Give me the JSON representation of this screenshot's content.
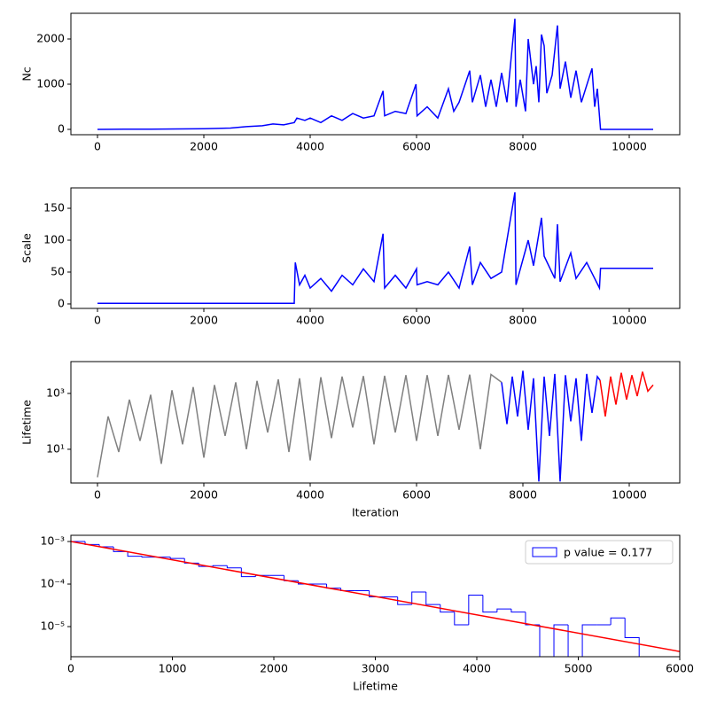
{
  "chart_data": [
    {
      "type": "line",
      "ylabel": "Nc",
      "xlim": [
        -500,
        10950
      ],
      "xticks": [
        0,
        2000,
        4000,
        6000,
        8000,
        10000
      ],
      "ylim": [
        -118,
        2569
      ],
      "yticks": [
        0,
        1000,
        2000
      ],
      "series": [
        {
          "color": "blue",
          "x": [
            0,
            500,
            1000,
            1500,
            2000,
            2500,
            2800,
            3100,
            3300,
            3500,
            3700,
            3750,
            3900,
            4000,
            4200,
            4400,
            4600,
            4800,
            5000,
            5200,
            5370,
            5400,
            5600,
            5800,
            5990,
            6010,
            6200,
            6400,
            6600,
            6700,
            6800,
            7000,
            7050,
            7200,
            7300,
            7400,
            7500,
            7600,
            7700,
            7850,
            7870,
            7950,
            8050,
            8100,
            8200,
            8250,
            8300,
            8350,
            8400,
            8450,
            8550,
            8650,
            8700,
            8800,
            8900,
            9000,
            9100,
            9300,
            9350,
            9400,
            9440,
            9460,
            10450
          ],
          "values": [
            0,
            5,
            5,
            10,
            15,
            30,
            60,
            80,
            120,
            100,
            150,
            250,
            200,
            250,
            150,
            300,
            200,
            350,
            250,
            300,
            850,
            300,
            400,
            350,
            1000,
            300,
            500,
            250,
            900,
            400,
            600,
            1300,
            600,
            1200,
            500,
            1100,
            500,
            1250,
            600,
            2450,
            500,
            1100,
            400,
            2000,
            1000,
            1400,
            600,
            2100,
            1850,
            800,
            1200,
            2300,
            900,
            1500,
            700,
            1300,
            600,
            1350,
            500,
            900,
            300,
            0,
            0
          ]
        }
      ]
    },
    {
      "type": "line",
      "ylabel": "Scale",
      "xlim": [
        -500,
        10950
      ],
      "xticks": [
        0,
        2000,
        4000,
        6000,
        8000,
        10000
      ],
      "ylim": [
        -7,
        182
      ],
      "yticks": [
        0,
        50,
        100,
        150
      ],
      "series": [
        {
          "color": "blue",
          "x": [
            0,
            3700,
            3720,
            3800,
            3900,
            4000,
            4200,
            4400,
            4600,
            4800,
            5000,
            5200,
            5370,
            5400,
            5600,
            5800,
            6000,
            6010,
            6200,
            6400,
            6600,
            6800,
            7000,
            7050,
            7200,
            7400,
            7600,
            7850,
            7870,
            8100,
            8200,
            8350,
            8400,
            8600,
            8650,
            8700,
            8900,
            9000,
            9200,
            9440,
            9460,
            10450
          ],
          "values": [
            1,
            1,
            65,
            30,
            45,
            25,
            40,
            20,
            45,
            30,
            55,
            35,
            110,
            25,
            45,
            25,
            55,
            30,
            35,
            30,
            50,
            25,
            90,
            30,
            65,
            40,
            50,
            175,
            30,
            100,
            60,
            135,
            75,
            40,
            125,
            35,
            80,
            40,
            65,
            25,
            56,
            56
          ]
        }
      ]
    },
    {
      "type": "line",
      "ylabel": "Lifetime",
      "xlabel": "Iteration",
      "ylog": true,
      "xlim": [
        -500,
        10950
      ],
      "xticks": [
        0,
        2000,
        4000,
        6000,
        8000,
        10000
      ],
      "ylim": [
        0.62,
        13800
      ],
      "yticks": [
        {
          "value": 10,
          "label": "10¹"
        },
        {
          "value": 1000,
          "label": "10³"
        }
      ],
      "series": [
        {
          "color": "#808080",
          "x": [
            0,
            200,
            400,
            600,
            800,
            1000,
            1200,
            1400,
            1600,
            1800,
            2000,
            2200,
            2400,
            2600,
            2800,
            3000,
            3200,
            3400,
            3600,
            3800,
            4000,
            4200,
            4400,
            4600,
            4800,
            5000,
            5200,
            5400,
            5600,
            5800,
            6000,
            6200,
            6400,
            6600,
            6800,
            7000,
            7200,
            7400,
            7600
          ],
          "values": [
            1,
            150,
            8,
            600,
            20,
            900,
            3,
            1300,
            15,
            1700,
            5,
            2000,
            30,
            2500,
            10,
            2800,
            40,
            3200,
            8,
            3500,
            4,
            3800,
            25,
            4000,
            60,
            4200,
            15,
            4300,
            40,
            4500,
            20,
            4500,
            30,
            4600,
            50,
            4700,
            10,
            4800,
            2500
          ]
        },
        {
          "color": "blue",
          "x": [
            7600,
            7700,
            7800,
            7900,
            8000,
            8100,
            8200,
            8300,
            8400,
            8500,
            8600,
            8700,
            8800,
            8900,
            9000,
            9100,
            9200,
            9300,
            9400,
            9450
          ],
          "values": [
            2500,
            80,
            4000,
            150,
            6500,
            50,
            3500,
            0.7,
            4000,
            30,
            5000,
            0.7,
            4500,
            100,
            3500,
            20,
            5000,
            200,
            4000,
            3000
          ]
        },
        {
          "color": "red",
          "x": [
            9450,
            9550,
            9650,
            9750,
            9850,
            9950,
            10050,
            10150,
            10250,
            10350,
            10450
          ],
          "values": [
            3000,
            150,
            4000,
            400,
            5500,
            600,
            4500,
            800,
            6000,
            1200,
            2000
          ]
        }
      ]
    },
    {
      "type": "histogram",
      "xlabel": "Lifetime",
      "ylog": true,
      "xlim": [
        0,
        6000
      ],
      "xticks": [
        0,
        1000,
        2000,
        3000,
        4000,
        5000,
        6000
      ],
      "ylim": [
        1.96e-06,
        0.0014
      ],
      "yticks": [
        {
          "value": 1e-05,
          "label": "10⁻⁵"
        },
        {
          "value": 0.0001,
          "label": "10⁻⁴"
        },
        {
          "value": 0.001,
          "label": "10⁻³"
        }
      ],
      "name": "p value = 0.177",
      "color": "blue",
      "legend_loc": "upper right",
      "bins": [
        0,
        140,
        280,
        420,
        560,
        700,
        840,
        980,
        1120,
        1260,
        1400,
        1540,
        1680,
        1820,
        1960,
        2100,
        2240,
        2380,
        2520,
        2660,
        2800,
        2940,
        3080,
        3220,
        3360,
        3500,
        3640,
        3780,
        3920,
        4060,
        4200,
        4340,
        4480,
        4620,
        4760,
        4900,
        5040,
        5180,
        5320,
        5460,
        5600
      ],
      "values": [
        0.001,
        0.00085,
        0.00075,
        0.00058,
        0.00045,
        0.00043,
        0.00043,
        0.0004,
        0.00031,
        0.00026,
        0.00027,
        0.00024,
        0.00015,
        0.00016,
        0.00016,
        0.00012,
        0.0001,
        0.0001,
        8e-05,
        7e-05,
        7e-05,
        5e-05,
        5e-05,
        3.3e-05,
        6.5e-05,
        3.3e-05,
        2.2e-05,
        1.1e-05,
        5.5e-05,
        2.2e-05,
        2.6e-05,
        2.2e-05,
        1.1e-05,
        0,
        1.1e-05,
        0,
        1.1e-05,
        1.1e-05,
        1.6e-05,
        5.5e-06
      ],
      "fit": {
        "color": "red",
        "x": [
          0,
          6000
        ],
        "values": [
          0.001,
          2.6e-06
        ]
      }
    }
  ]
}
